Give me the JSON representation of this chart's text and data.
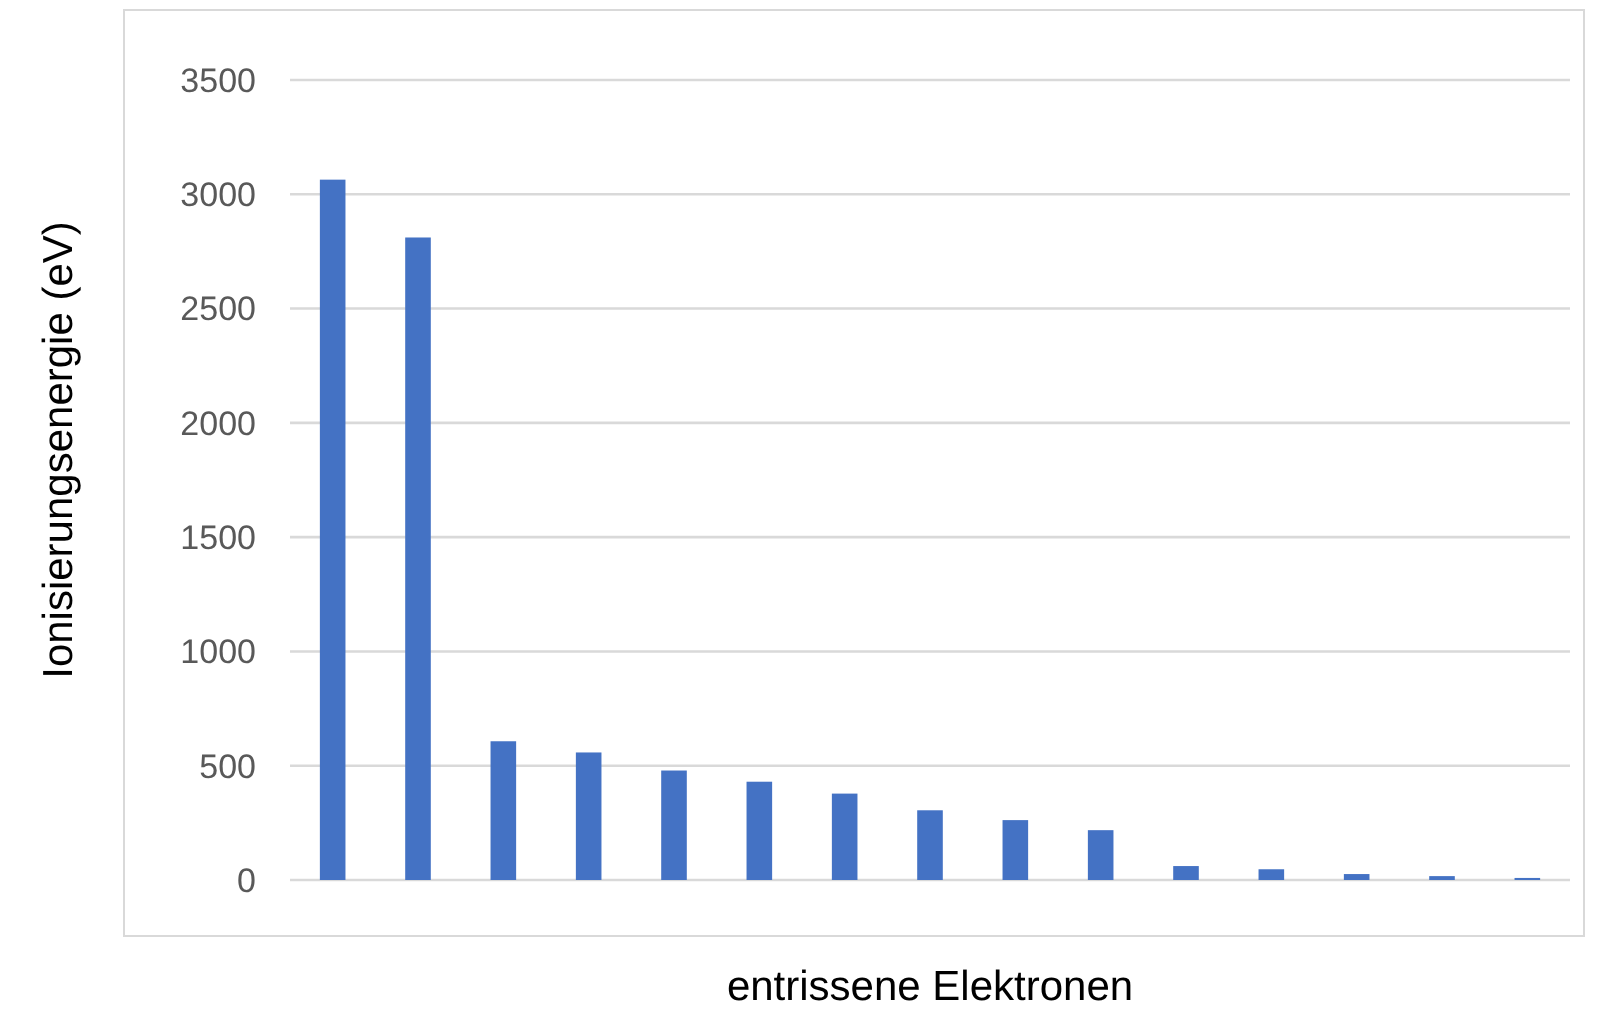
{
  "chart_data": {
    "type": "bar",
    "xlabel": "entrissene Elektronen",
    "ylabel": "Ionisierungsenergie (eV)",
    "categories": [
      null,
      null,
      null,
      null,
      null,
      null,
      null,
      null,
      null,
      null,
      null,
      null,
      null,
      null,
      null
    ],
    "values": [
      3064,
      2811,
      607,
      558,
      479,
      430,
      378,
      305,
      262,
      218,
      61,
      47,
      26,
      17,
      9
    ],
    "color": "#4472c4",
    "ylim": [
      0,
      3500
    ],
    "yticks": [
      0,
      500,
      1000,
      1500,
      2000,
      2500,
      3000,
      3500
    ],
    "grid": "y",
    "tick_labels": "y"
  }
}
